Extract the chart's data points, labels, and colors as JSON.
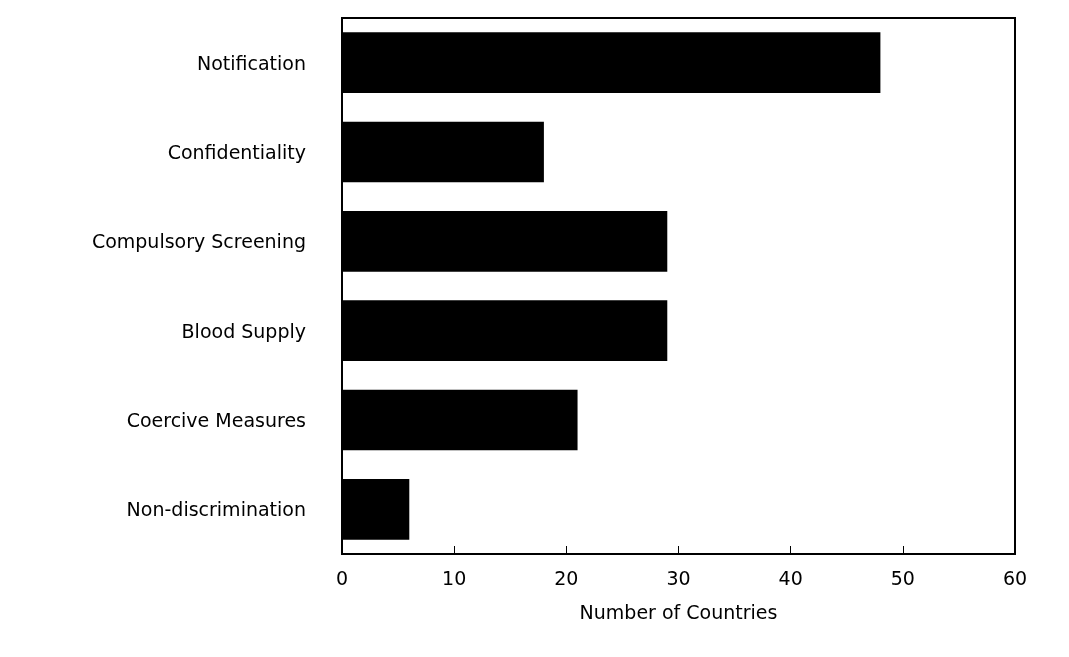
{
  "chart_data": {
    "type": "bar",
    "orientation": "horizontal",
    "xlabel": "Number of Countries",
    "categories": [
      "Notification",
      "Confidentiality",
      "Compulsory Screening",
      "Blood Supply",
      "Coercive Measures",
      "Non-discrimination"
    ],
    "values": [
      48,
      18,
      29,
      29,
      21,
      6
    ],
    "color": "#000000",
    "xlim": [
      0,
      60
    ],
    "xticks": [
      0,
      10,
      20,
      30,
      40,
      50,
      60
    ]
  }
}
